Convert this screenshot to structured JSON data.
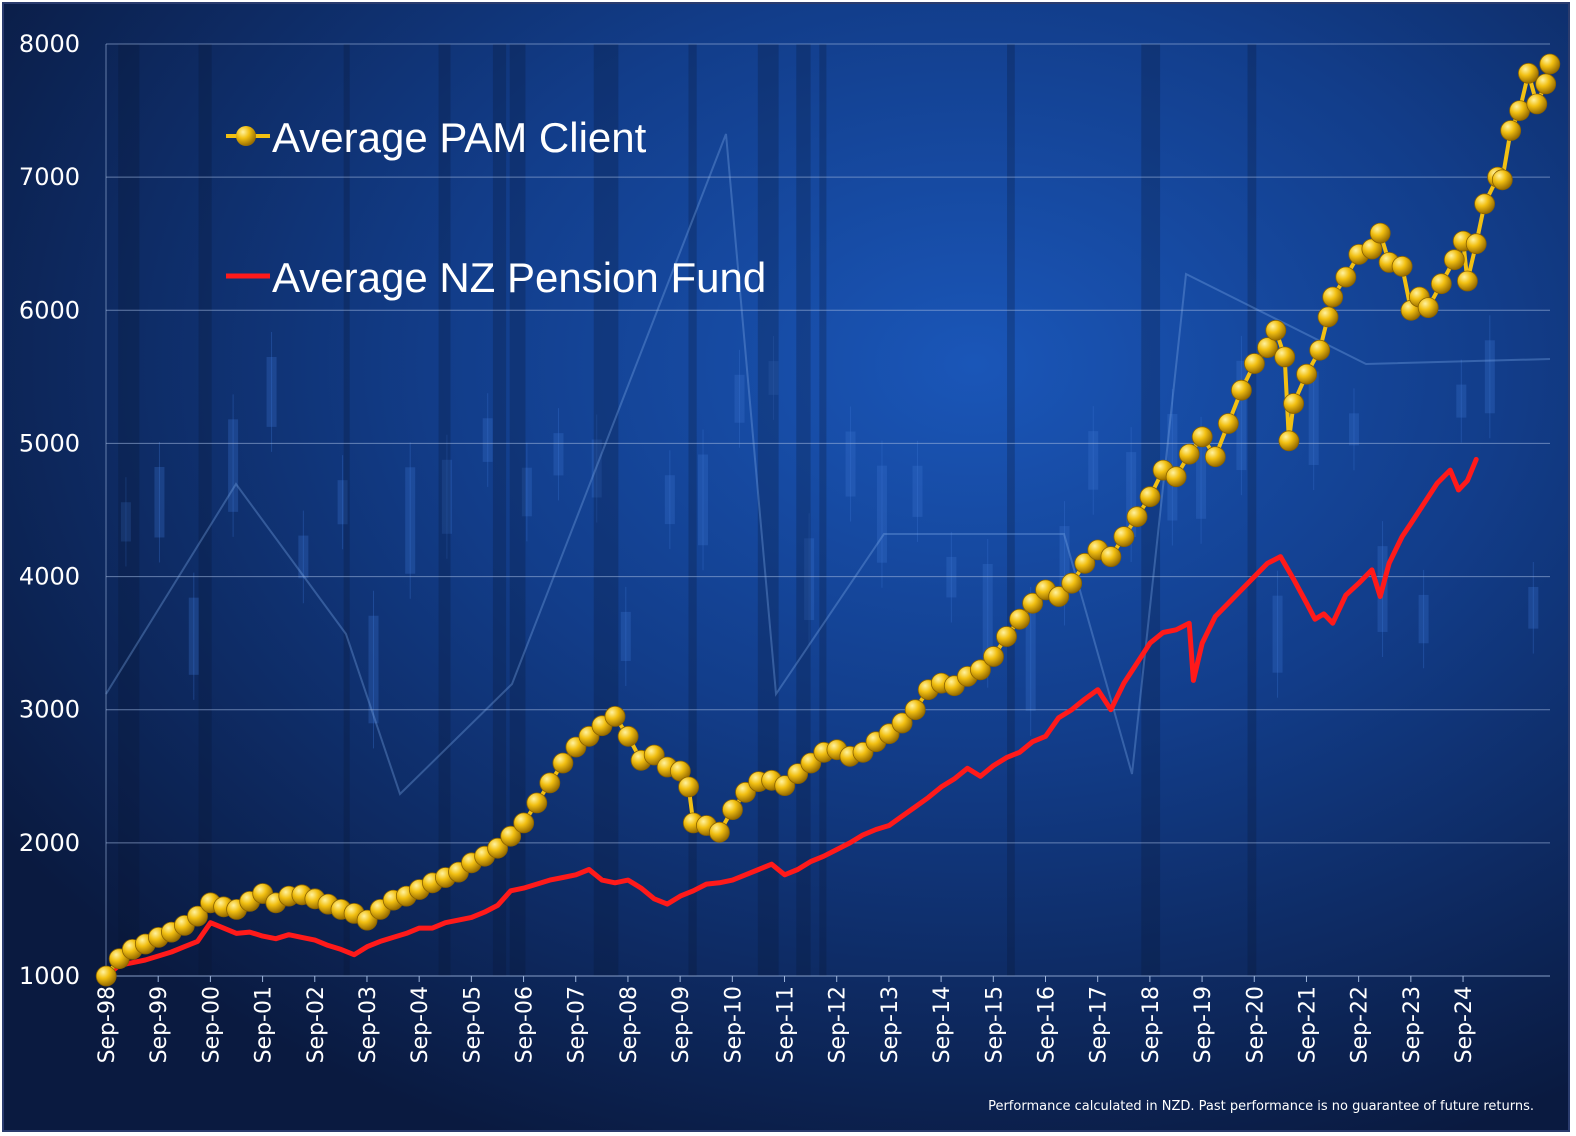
{
  "chart_data": {
    "type": "line",
    "title": "",
    "xlabel": "",
    "ylabel": "",
    "ylim": [
      1000,
      8000
    ],
    "yticks": [
      1000,
      2000,
      3000,
      4000,
      5000,
      6000,
      7000,
      8000
    ],
    "ytick_labels": [
      "1000",
      "2000",
      "3000",
      "4000",
      "5000",
      "6000",
      "7000",
      "8000"
    ],
    "xlim": [
      1998.667,
      2025.333
    ],
    "xtick_labels": [
      "Sep-98",
      "Sep-99",
      "Sep-00",
      "Sep-01",
      "Sep-02",
      "Sep-03",
      "Sep-04",
      "Sep-05",
      "Sep-06",
      "Sep-07",
      "Sep-08",
      "Sep-09",
      "Sep-10",
      "Sep-11",
      "Sep-12",
      "Sep-13",
      "Sep-14",
      "Sep-15",
      "Sep-16",
      "Sep-17",
      "Sep-18",
      "Sep-19",
      "Sep-20",
      "Sep-21",
      "Sep-22",
      "Sep-23",
      "Sep-24"
    ],
    "grid": "horizontal",
    "legend_position": "top-left",
    "series": [
      {
        "name": "Average PAM Client",
        "color": "#f2c012",
        "marker": "circle",
        "points": [
          [
            1998.67,
            1000
          ],
          [
            1998.92,
            1130
          ],
          [
            1999.17,
            1200
          ],
          [
            1999.42,
            1240
          ],
          [
            1999.67,
            1290
          ],
          [
            1999.92,
            1330
          ],
          [
            2000.17,
            1380
          ],
          [
            2000.42,
            1450
          ],
          [
            2000.67,
            1550
          ],
          [
            2000.92,
            1520
          ],
          [
            2001.17,
            1500
          ],
          [
            2001.42,
            1560
          ],
          [
            2001.67,
            1620
          ],
          [
            2001.92,
            1550
          ],
          [
            2002.17,
            1600
          ],
          [
            2002.42,
            1610
          ],
          [
            2002.67,
            1580
          ],
          [
            2002.92,
            1540
          ],
          [
            2003.17,
            1500
          ],
          [
            2003.42,
            1470
          ],
          [
            2003.67,
            1420
          ],
          [
            2003.92,
            1500
          ],
          [
            2004.17,
            1570
          ],
          [
            2004.42,
            1600
          ],
          [
            2004.67,
            1650
          ],
          [
            2004.92,
            1700
          ],
          [
            2005.17,
            1740
          ],
          [
            2005.42,
            1780
          ],
          [
            2005.67,
            1850
          ],
          [
            2005.92,
            1900
          ],
          [
            2006.17,
            1960
          ],
          [
            2006.42,
            2050
          ],
          [
            2006.67,
            2150
          ],
          [
            2006.92,
            2300
          ],
          [
            2007.17,
            2450
          ],
          [
            2007.42,
            2600
          ],
          [
            2007.67,
            2720
          ],
          [
            2007.92,
            2800
          ],
          [
            2008.17,
            2880
          ],
          [
            2008.42,
            2950
          ],
          [
            2008.67,
            2800
          ],
          [
            2008.92,
            2620
          ],
          [
            2009.17,
            2660
          ],
          [
            2009.42,
            2570
          ],
          [
            2009.67,
            2540
          ],
          [
            2009.83,
            2420
          ],
          [
            2009.92,
            2150
          ],
          [
            2010.17,
            2130
          ],
          [
            2010.42,
            2080
          ],
          [
            2010.67,
            2250
          ],
          [
            2010.92,
            2380
          ],
          [
            2011.17,
            2460
          ],
          [
            2011.42,
            2470
          ],
          [
            2011.67,
            2430
          ],
          [
            2011.92,
            2520
          ],
          [
            2012.17,
            2600
          ],
          [
            2012.42,
            2680
          ],
          [
            2012.67,
            2700
          ],
          [
            2012.92,
            2650
          ],
          [
            2013.17,
            2680
          ],
          [
            2013.42,
            2760
          ],
          [
            2013.67,
            2820
          ],
          [
            2013.92,
            2900
          ],
          [
            2014.17,
            3000
          ],
          [
            2014.42,
            3150
          ],
          [
            2014.67,
            3200
          ],
          [
            2014.92,
            3180
          ],
          [
            2015.17,
            3250
          ],
          [
            2015.42,
            3300
          ],
          [
            2015.67,
            3400
          ],
          [
            2015.92,
            3550
          ],
          [
            2016.17,
            3680
          ],
          [
            2016.42,
            3800
          ],
          [
            2016.67,
            3900
          ],
          [
            2016.92,
            3850
          ],
          [
            2017.17,
            3950
          ],
          [
            2017.42,
            4100
          ],
          [
            2017.67,
            4200
          ],
          [
            2017.92,
            4150
          ],
          [
            2018.17,
            4300
          ],
          [
            2018.42,
            4450
          ],
          [
            2018.67,
            4600
          ],
          [
            2018.92,
            4800
          ],
          [
            2019.17,
            4750
          ],
          [
            2019.42,
            4920
          ],
          [
            2019.67,
            5050
          ],
          [
            2019.92,
            4900
          ],
          [
            2020.17,
            5150
          ],
          [
            2020.42,
            5400
          ],
          [
            2020.67,
            5600
          ],
          [
            2020.92,
            5720
          ],
          [
            2021.08,
            5850
          ],
          [
            2021.25,
            5650
          ],
          [
            2021.33,
            5020
          ],
          [
            2021.42,
            5300
          ],
          [
            2021.67,
            5520
          ],
          [
            2021.92,
            5700
          ],
          [
            2022.08,
            5950
          ],
          [
            2022.17,
            6100
          ],
          [
            2022.42,
            6250
          ],
          [
            2022.67,
            6420
          ],
          [
            2022.92,
            6460
          ],
          [
            2023.08,
            6580
          ],
          [
            2023.25,
            6360
          ],
          [
            2023.5,
            6330
          ],
          [
            2023.67,
            6000
          ],
          [
            2023.83,
            6100
          ],
          [
            2024.0,
            6020
          ],
          [
            2024.25,
            6200
          ],
          [
            2024.5,
            6380
          ],
          [
            2024.67,
            6520
          ],
          [
            2024.75,
            6220
          ],
          [
            2024.92,
            6500
          ],
          [
            2025.08,
            6800
          ],
          [
            2025.33,
            7000
          ],
          [
            2025.42,
            6980
          ],
          [
            2025.58,
            7350
          ],
          [
            2025.75,
            7500
          ],
          [
            2025.92,
            7780
          ],
          [
            2026.08,
            7550
          ],
          [
            2026.25,
            7700
          ],
          [
            2026.33,
            7850
          ]
        ]
      },
      {
        "name": "Average NZ Pension Fund",
        "color": "#ff1a1a",
        "marker": "none",
        "points": [
          [
            1998.67,
            1000
          ],
          [
            1998.92,
            1080
          ],
          [
            1999.17,
            1100
          ],
          [
            1999.42,
            1120
          ],
          [
            1999.67,
            1150
          ],
          [
            1999.92,
            1180
          ],
          [
            2000.17,
            1220
          ],
          [
            2000.42,
            1260
          ],
          [
            2000.67,
            1400
          ],
          [
            2000.92,
            1360
          ],
          [
            2001.17,
            1320
          ],
          [
            2001.42,
            1330
          ],
          [
            2001.67,
            1300
          ],
          [
            2001.92,
            1280
          ],
          [
            2002.17,
            1310
          ],
          [
            2002.42,
            1290
          ],
          [
            2002.67,
            1270
          ],
          [
            2002.92,
            1230
          ],
          [
            2003.17,
            1200
          ],
          [
            2003.42,
            1160
          ],
          [
            2003.67,
            1220
          ],
          [
            2003.92,
            1260
          ],
          [
            2004.17,
            1290
          ],
          [
            2004.42,
            1320
          ],
          [
            2004.67,
            1360
          ],
          [
            2004.92,
            1360
          ],
          [
            2005.17,
            1400
          ],
          [
            2005.42,
            1420
          ],
          [
            2005.67,
            1440
          ],
          [
            2005.92,
            1480
          ],
          [
            2006.17,
            1530
          ],
          [
            2006.42,
            1640
          ],
          [
            2006.67,
            1660
          ],
          [
            2006.92,
            1690
          ],
          [
            2007.17,
            1720
          ],
          [
            2007.42,
            1740
          ],
          [
            2007.67,
            1760
          ],
          [
            2007.92,
            1800
          ],
          [
            2008.17,
            1720
          ],
          [
            2008.42,
            1700
          ],
          [
            2008.67,
            1720
          ],
          [
            2008.92,
            1660
          ],
          [
            2009.17,
            1580
          ],
          [
            2009.42,
            1540
          ],
          [
            2009.67,
            1600
          ],
          [
            2009.92,
            1640
          ],
          [
            2010.17,
            1690
          ],
          [
            2010.42,
            1700
          ],
          [
            2010.67,
            1720
          ],
          [
            2010.92,
            1760
          ],
          [
            2011.17,
            1800
          ],
          [
            2011.42,
            1840
          ],
          [
            2011.67,
            1760
          ],
          [
            2011.92,
            1800
          ],
          [
            2012.17,
            1860
          ],
          [
            2012.42,
            1900
          ],
          [
            2012.67,
            1950
          ],
          [
            2012.92,
            2000
          ],
          [
            2013.17,
            2060
          ],
          [
            2013.42,
            2100
          ],
          [
            2013.67,
            2130
          ],
          [
            2013.92,
            2200
          ],
          [
            2014.17,
            2270
          ],
          [
            2014.42,
            2340
          ],
          [
            2014.67,
            2420
          ],
          [
            2014.92,
            2480
          ],
          [
            2015.17,
            2560
          ],
          [
            2015.42,
            2500
          ],
          [
            2015.67,
            2580
          ],
          [
            2015.92,
            2640
          ],
          [
            2016.17,
            2680
          ],
          [
            2016.42,
            2760
          ],
          [
            2016.67,
            2800
          ],
          [
            2016.92,
            2940
          ],
          [
            2017.17,
            3000
          ],
          [
            2017.42,
            3080
          ],
          [
            2017.67,
            3150
          ],
          [
            2017.92,
            3000
          ],
          [
            2018.17,
            3200
          ],
          [
            2018.42,
            3350
          ],
          [
            2018.67,
            3500
          ],
          [
            2018.92,
            3580
          ],
          [
            2019.17,
            3600
          ],
          [
            2019.42,
            3650
          ],
          [
            2019.5,
            3220
          ],
          [
            2019.67,
            3500
          ],
          [
            2019.92,
            3700
          ],
          [
            2020.17,
            3800
          ],
          [
            2020.42,
            3900
          ],
          [
            2020.67,
            4000
          ],
          [
            2020.92,
            4100
          ],
          [
            2021.17,
            4150
          ],
          [
            2021.42,
            3980
          ],
          [
            2021.67,
            3800
          ],
          [
            2021.83,
            3680
          ],
          [
            2022.0,
            3720
          ],
          [
            2022.17,
            3650
          ],
          [
            2022.42,
            3860
          ],
          [
            2022.67,
            3950
          ],
          [
            2022.92,
            4050
          ],
          [
            2023.08,
            3850
          ],
          [
            2023.25,
            4100
          ],
          [
            2023.5,
            4300
          ],
          [
            2023.67,
            4400
          ],
          [
            2023.92,
            4550
          ],
          [
            2024.17,
            4700
          ],
          [
            2024.42,
            4800
          ],
          [
            2024.58,
            4650
          ],
          [
            2024.75,
            4720
          ],
          [
            2024.92,
            4880
          ]
        ]
      }
    ]
  },
  "footnote": "Performance calculated in NZD.  Past performance is no guarantee of future returns."
}
